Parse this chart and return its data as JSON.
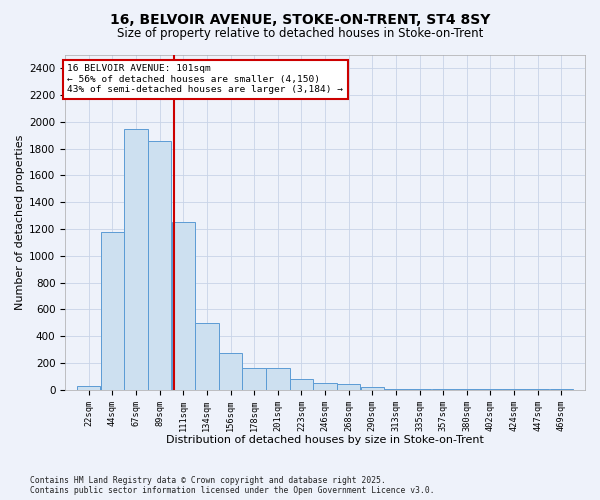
{
  "title_line1": "16, BELVOIR AVENUE, STOKE-ON-TRENT, ST4 8SY",
  "title_line2": "Size of property relative to detached houses in Stoke-on-Trent",
  "xlabel": "Distribution of detached houses by size in Stoke-on-Trent",
  "ylabel": "Number of detached properties",
  "bins": [
    "22sqm",
    "44sqm",
    "67sqm",
    "89sqm",
    "111sqm",
    "134sqm",
    "156sqm",
    "178sqm",
    "201sqm",
    "223sqm",
    "246sqm",
    "268sqm",
    "290sqm",
    "313sqm",
    "335sqm",
    "357sqm",
    "380sqm",
    "402sqm",
    "424sqm",
    "447sqm",
    "469sqm"
  ],
  "values": [
    30,
    1180,
    1950,
    1860,
    1250,
    500,
    270,
    160,
    160,
    80,
    50,
    45,
    20,
    5,
    5,
    3,
    2,
    1,
    1,
    1,
    1
  ],
  "bar_color": "#cde0f0",
  "bar_edge_color": "#5b9bd5",
  "grid_color": "#c8d4e8",
  "vline_color": "#cc0000",
  "annotation_line1": "16 BELVOIR AVENUE: 101sqm",
  "annotation_line2": "← 56% of detached houses are smaller (4,150)",
  "annotation_line3": "43% of semi-detached houses are larger (3,184) →",
  "annotation_box_facecolor": "#ffffff",
  "annotation_box_edgecolor": "#cc0000",
  "ylim": [
    0,
    2500
  ],
  "yticks": [
    0,
    200,
    400,
    600,
    800,
    1000,
    1200,
    1400,
    1600,
    1800,
    2000,
    2200,
    2400
  ],
  "bin_width": 22,
  "ref_sqm": 101,
  "footer_line1": "Contains HM Land Registry data © Crown copyright and database right 2025.",
  "footer_line2": "Contains public sector information licensed under the Open Government Licence v3.0.",
  "background_color": "#eef2fa",
  "title1_fontsize": 10,
  "title2_fontsize": 8.5
}
